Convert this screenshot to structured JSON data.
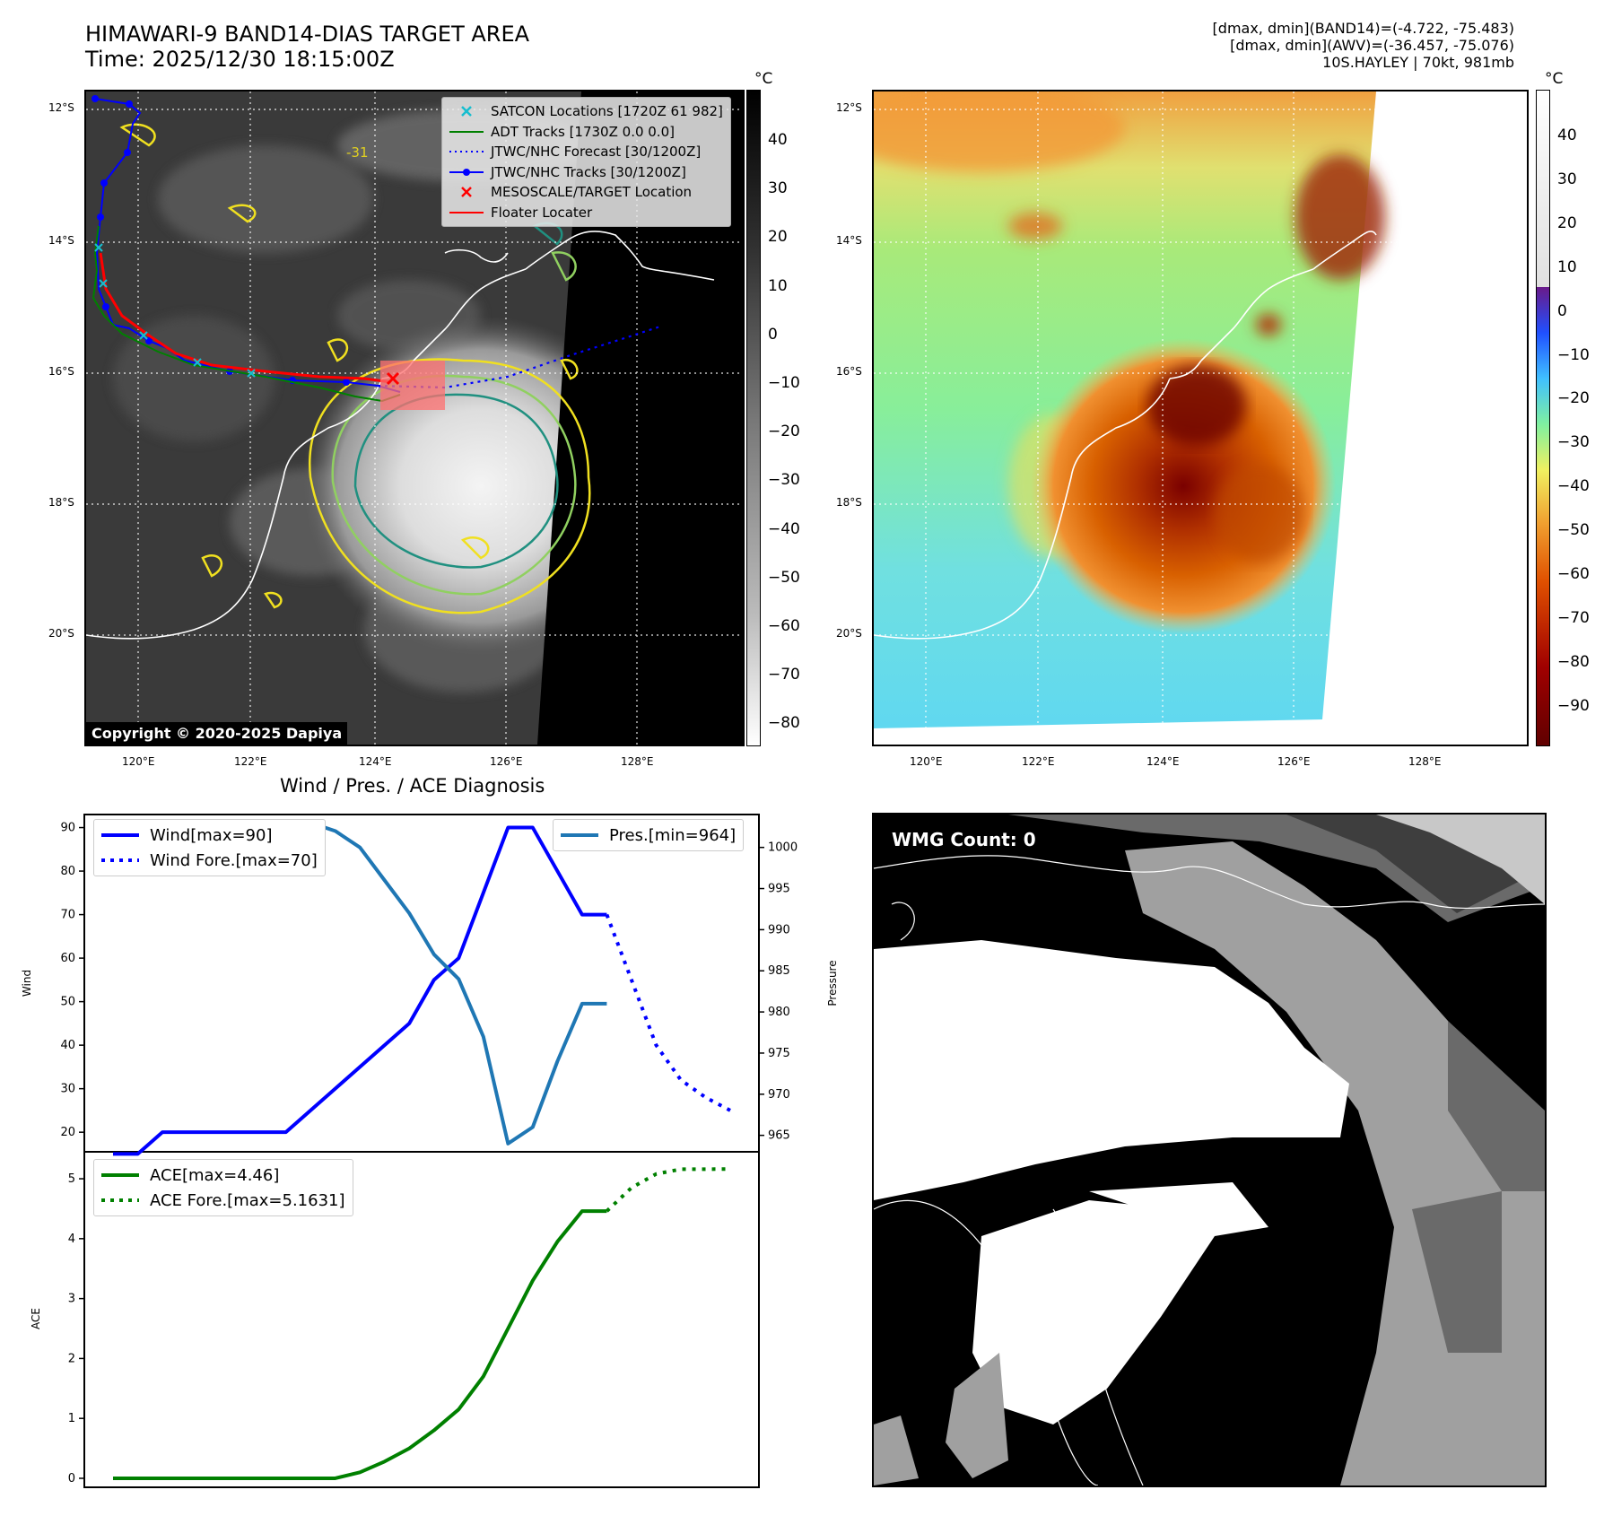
{
  "header": {
    "title_line1": "HIMAWARI-9 BAND14-DIAS TARGET AREA",
    "title_line2": "Time: 2025/12/30 18:15:00Z",
    "info_line1": "[dmax, dmin](BAND14)=(-4.722, -75.483)",
    "info_line2": "[dmax, dmin](AWV)=(-36.457, -75.076)",
    "info_line3": "10S.HAYLEY | 70kt, 981mb"
  },
  "map_left": {
    "lat_labels": [
      "12°S",
      "14°S",
      "16°S",
      "18°S",
      "20°S"
    ],
    "lon_labels": [
      "120°E",
      "122°E",
      "124°E",
      "126°E",
      "128°E"
    ],
    "contour_label": "-31",
    "copyright": "Copyright © 2020-2025 Dapiya",
    "legend": [
      {
        "label": "SATCON Locations [1720Z 61 982]",
        "color": "#17becf",
        "marker": "x"
      },
      {
        "label": "ADT Tracks [1730Z 0.0 0.0]",
        "color": "#008000",
        "marker": "line"
      },
      {
        "label": "JTWC/NHC Forecast [30/1200Z]",
        "color": "#0000ff",
        "marker": "dotted"
      },
      {
        "label": "JTWC/NHC Tracks [30/1200Z]",
        "color": "#0000ff",
        "marker": "line-dot"
      },
      {
        "label": "MESOSCALE/TARGET Location",
        "color": "#ff0000",
        "marker": "x"
      },
      {
        "label": "Floater Locater",
        "color": "#ff0000",
        "marker": "line"
      }
    ]
  },
  "colorbar_left": {
    "unit": "°C",
    "ticks": [
      "40",
      "30",
      "20",
      "10",
      "0",
      "−10",
      "−20",
      "−30",
      "−40",
      "−50",
      "−60",
      "−70",
      "−80"
    ]
  },
  "map_right": {
    "lat_labels": [
      "12°S",
      "14°S",
      "16°S",
      "18°S",
      "20°S"
    ],
    "lon_labels": [
      "120°E",
      "122°E",
      "124°E",
      "126°E",
      "128°E"
    ]
  },
  "colorbar_right": {
    "unit": "°C",
    "ticks": [
      "40",
      "30",
      "20",
      "10",
      "0",
      "−10",
      "−20",
      "−30",
      "−40",
      "−50",
      "−60",
      "−70",
      "−80",
      "−90"
    ]
  },
  "wmg": {
    "label": "WMG Count: 0"
  },
  "chart_data": [
    {
      "type": "line",
      "title": "Wind / Pres. / ACE Diagnosis",
      "ylabel": "Wind",
      "ylabel_right": "Pressure",
      "ylim": [
        15.5,
        93
      ],
      "ylim_right": [
        963,
        1004
      ],
      "yticks": [
        20,
        30,
        40,
        50,
        60,
        70,
        80,
        90
      ],
      "yticks_right": [
        965,
        970,
        975,
        980,
        985,
        990,
        995,
        1000
      ],
      "x": [
        0,
        1,
        2,
        3,
        4,
        5,
        6,
        7,
        8,
        9,
        10,
        11,
        12,
        13,
        14,
        15,
        16,
        17,
        18,
        19,
        20,
        21,
        22,
        23,
        24,
        25
      ],
      "series": [
        {
          "name": "Wind[max=90]",
          "color": "#0000ff",
          "style": "solid",
          "x": [
            0,
            1,
            2,
            3,
            4,
            5,
            6,
            7,
            8,
            9,
            10,
            11,
            12,
            13,
            14,
            15,
            16,
            17,
            18,
            19,
            20
          ],
          "values": [
            15,
            15,
            20,
            20,
            20,
            20,
            20,
            20,
            25,
            30,
            35,
            40,
            45,
            55,
            60,
            75,
            90,
            90,
            80,
            70,
            70
          ]
        },
        {
          "name": "Wind Fore.[max=70]",
          "color": "#0000ff",
          "style": "dotted",
          "x": [
            20,
            21,
            22,
            23,
            24,
            25
          ],
          "values": [
            70,
            55,
            40,
            32,
            28,
            25
          ]
        },
        {
          "name": "Pres.[min=964]",
          "color": "#1f77b4",
          "style": "solid",
          "axis": "right",
          "x": [
            0,
            1,
            2,
            3,
            4,
            5,
            6,
            7,
            8,
            9,
            10,
            11,
            12,
            13,
            14,
            15,
            16,
            17,
            18,
            19,
            20
          ],
          "values": [
            1003,
            1003,
            1003,
            1003,
            1003,
            1003,
            1003,
            1003,
            1003,
            1002,
            1000,
            996,
            992,
            987,
            984,
            977,
            964,
            966,
            974,
            981,
            981
          ]
        }
      ]
    },
    {
      "type": "line",
      "ylabel": "ACE",
      "ylim": [
        -0.15,
        5.45
      ],
      "yticks": [
        0,
        1,
        2,
        3,
        4,
        5
      ],
      "series": [
        {
          "name": "ACE[max=4.46]",
          "color": "#008000",
          "style": "solid",
          "x": [
            0,
            1,
            2,
            3,
            4,
            5,
            6,
            7,
            8,
            9,
            10,
            11,
            12,
            13,
            14,
            15,
            16,
            17,
            18,
            19,
            20
          ],
          "values": [
            0,
            0,
            0,
            0,
            0,
            0,
            0,
            0,
            0,
            0,
            0.1,
            0.28,
            0.5,
            0.8,
            1.15,
            1.7,
            2.5,
            3.3,
            3.95,
            4.46,
            4.46
          ]
        },
        {
          "name": "ACE Fore.[max=5.1631]",
          "color": "#008000",
          "style": "dotted",
          "x": [
            20,
            21,
            22,
            23,
            24,
            25
          ],
          "values": [
            4.46,
            4.85,
            5.08,
            5.16,
            5.16,
            5.1631
          ]
        }
      ]
    }
  ]
}
